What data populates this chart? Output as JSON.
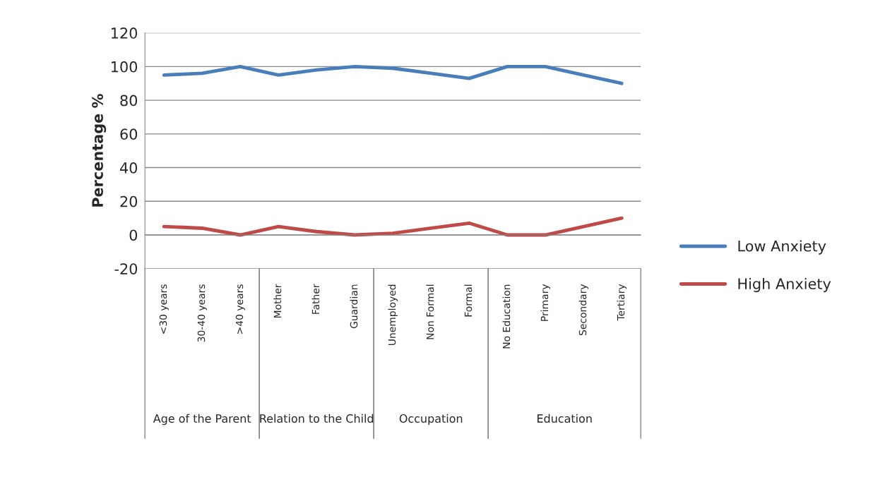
{
  "chart_data": {
    "type": "line",
    "ylabel": "Percentage %",
    "categories": [
      "<30 years",
      "30-40 years",
      ">40 years",
      "Mother",
      "Father",
      "Guardian",
      "Unemployed",
      "Non Formal",
      "Formal",
      "No Education",
      "Primary",
      "Secondary",
      "Tertiary"
    ],
    "series": [
      {
        "name": "Low Anxiety",
        "color": "#4a7ebb",
        "values": [
          95,
          96,
          100,
          95,
          98,
          100,
          99,
          96,
          93,
          100,
          100,
          95,
          90
        ]
      },
      {
        "name": "High Anxiety",
        "color": "#be4b48",
        "values": [
          5,
          4,
          0,
          5,
          2,
          0,
          1,
          4,
          7,
          0,
          0,
          5,
          10
        ]
      }
    ],
    "ylim": [
      -20,
      120
    ],
    "yticks": [
      -20,
      0,
      20,
      40,
      60,
      80,
      100,
      120
    ],
    "grid": "y",
    "legend": "right",
    "marker": "none",
    "line_style": "solid",
    "annotations": [
      "Age of the Parent",
      "Relation to the Child",
      "Occupation",
      "Education"
    ]
  }
}
